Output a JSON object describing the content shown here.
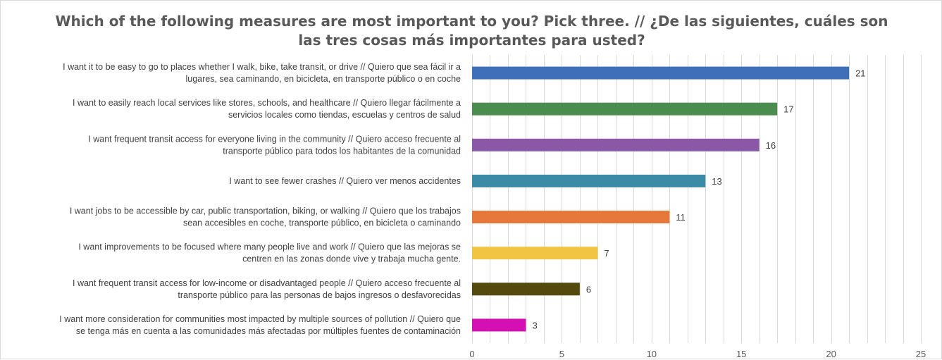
{
  "chart_data": {
    "type": "bar",
    "orientation": "horizontal",
    "title": "Which of the following measures are most important to you? Pick three. // ¿De las siguientes, cuáles son las tres cosas más importantes para usted?",
    "title_lines": [
      "Which of the following measures are most important to you? Pick three. // ¿De las siguientes, cuáles son",
      "las tres cosas más importantes para usted?"
    ],
    "categories": [
      [
        "I want it to be easy to go to places whether I walk, bike, take transit, or drive // Quiero que sea fácil ir a",
        "lugares, sea caminando, en bicicleta, en transporte público o en coche"
      ],
      [
        "I want to easily reach local services like stores, schools, and healthcare // Quiero llegar fácilmente a",
        "servicios locales como tiendas, escuelas y centros de salud"
      ],
      [
        "I want frequent transit access for everyone living in the community // Quiero acceso frecuente al",
        "transporte público para todos los habitantes de la comunidad"
      ],
      [
        "I want to see fewer crashes // Quiero ver menos accidentes"
      ],
      [
        "I want jobs to be accessible by car, public transportation, biking, or walking // Quiero que los trabajos",
        "sean accesibles en coche, transporte público, en bicicleta o caminando"
      ],
      [
        "I want improvements to be focused where many people live and work // Quiero que las mejoras se",
        "centren en las zonas donde vive y trabaja mucha gente."
      ],
      [
        "I want frequent transit access for low-income or disadvantaged people // Quiero acceso frecuente al",
        "transporte público para las personas de bajos ingresos o desfavorecidas"
      ],
      [
        "I want more consideration for communities most impacted by multiple sources of pollution // Quiero que",
        "se tenga más en cuenta a las comunidades más afectadas por múltiples fuentes de contaminación"
      ]
    ],
    "values": [
      21,
      17,
      16,
      13,
      11,
      7,
      6,
      3
    ],
    "colors": [
      "#3e6fb8",
      "#4a8d4e",
      "#8a58a6",
      "#3b8aa6",
      "#e6793a",
      "#f2c443",
      "#544a0d",
      "#d40fb4"
    ],
    "xlim": [
      0,
      25
    ],
    "xticks": [
      0,
      5,
      10,
      15,
      20,
      25
    ],
    "minor_gridlines": true,
    "data_labels": true,
    "grid_color": "#d9d9d9",
    "xlabel": "",
    "ylabel": ""
  }
}
